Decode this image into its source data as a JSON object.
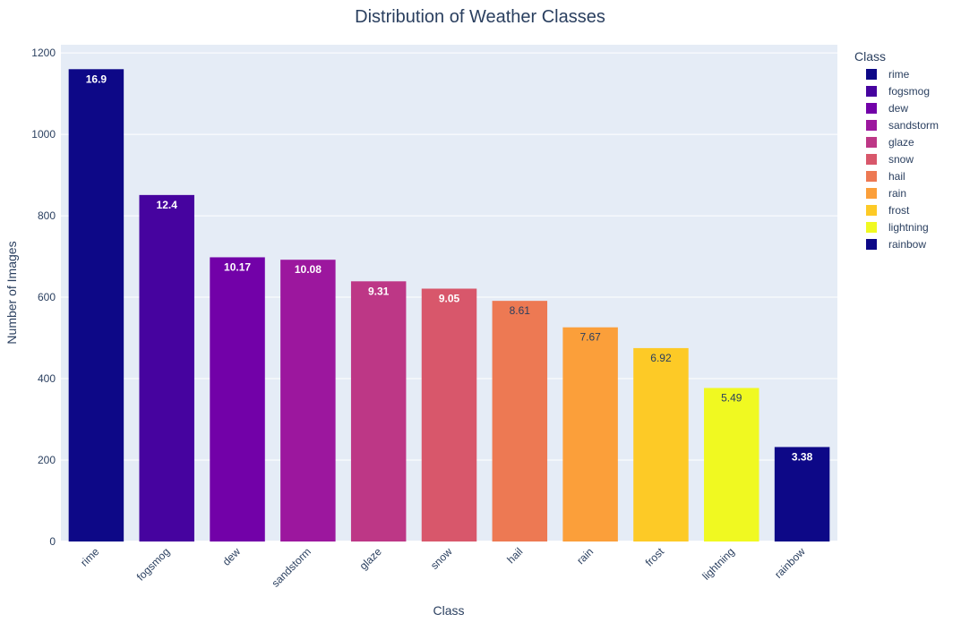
{
  "chart_data": {
    "type": "bar",
    "title": "Distribution of Weather Classes",
    "xlabel": "Class",
    "ylabel": "Number of Images",
    "ylim": [
      0,
      1220
    ],
    "yticks": [
      0,
      200,
      400,
      600,
      800,
      1000,
      1200
    ],
    "grid": true,
    "legend": {
      "title": "Class",
      "placement": "right"
    },
    "categories": [
      "rime",
      "fogsmog",
      "dew",
      "sandstorm",
      "glaze",
      "snow",
      "hail",
      "rain",
      "frost",
      "lightning",
      "rainbow"
    ],
    "values": [
      1160,
      851,
      698,
      692,
      639,
      621,
      591,
      526,
      475,
      377,
      232
    ],
    "labels": [
      "16.9",
      "12.4",
      "10.17",
      "10.08",
      "9.31",
      "9.05",
      "8.61",
      "7.67",
      "6.92",
      "5.49",
      "3.38"
    ],
    "colors": [
      "#0d0887",
      "#46039f",
      "#7201a8",
      "#9c179e",
      "#bd3786",
      "#d8576b",
      "#ed7953",
      "#fb9f3a",
      "#fdca26",
      "#f0f921",
      "#0d0887"
    ],
    "label_colors": [
      "#ffffff",
      "#ffffff",
      "#ffffff",
      "#ffffff",
      "#ffffff",
      "#ffffff",
      "#2a3f5f",
      "#2a3f5f",
      "#2a3f5f",
      "#2a3f5f",
      "#ffffff"
    ],
    "plot_bg": "#e5ecf6",
    "text_color": "#2a3f5f"
  }
}
